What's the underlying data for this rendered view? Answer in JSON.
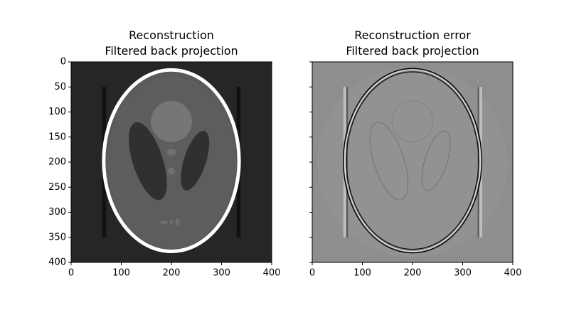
{
  "chart_data": [
    {
      "type": "image",
      "title": "Reconstruction\nFiltered back projection",
      "xlim": [
        0,
        400
      ],
      "ylim": [
        400,
        0
      ],
      "xticks": [
        0,
        100,
        200,
        300,
        400
      ],
      "yticks": [
        0,
        50,
        100,
        150,
        200,
        250,
        300,
        350,
        400
      ],
      "show_ytick_labels": true
    },
    {
      "type": "image",
      "title": "Reconstruction error\nFiltered back projection",
      "xlim": [
        0,
        400
      ],
      "ylim": [
        400,
        0
      ],
      "xticks": [
        0,
        100,
        200,
        300,
        400
      ],
      "yticks": [
        0,
        50,
        100,
        150,
        200,
        250,
        300,
        350,
        400
      ],
      "show_ytick_labels": false
    }
  ]
}
